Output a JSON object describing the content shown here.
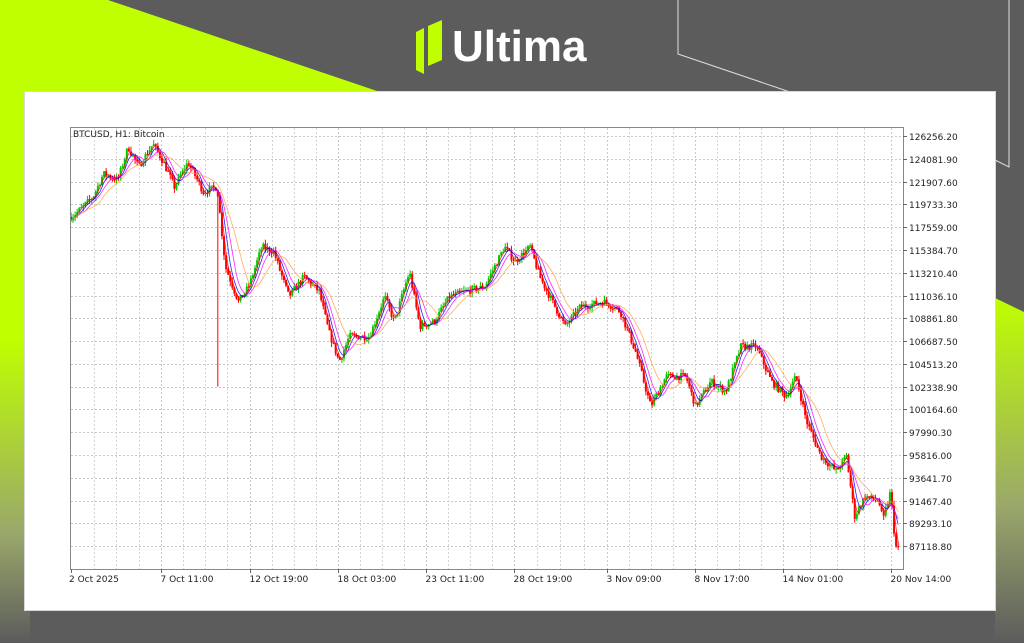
{
  "brand": {
    "name": "Ultima",
    "accent": "#bfff00",
    "background": "#5c5c5c"
  },
  "chart_data": {
    "type": "candlestick",
    "title": "BTCUSD, H1:  Bitcoin",
    "symbol": "BTCUSD",
    "timeframe": "H1",
    "ylim": [
      84940,
      127020
    ],
    "xlim": [
      "2025-10-02T00:00",
      "2025-11-21T07:00"
    ],
    "grid": true,
    "colors": {
      "bull": "#00c800",
      "bear": "#ff0000",
      "ma_fast": "#ff0000",
      "ma_mid": "#0000ff",
      "ma_slow": "#ff00ff",
      "ma_long": "#ffa040"
    },
    "y_ticks": [
      "126256.20",
      "124081.90",
      "121907.60",
      "119733.30",
      "117559.00",
      "115384.70",
      "113210.40",
      "111036.10",
      "108861.80",
      "106687.50",
      "104513.20",
      "102338.90",
      "100164.60",
      "97990.30",
      "95816.00",
      "93641.70",
      "91467.40",
      "89293.10",
      "87118.80"
    ],
    "x_ticks": [
      {
        "label": "2 Oct 2025",
        "t": "2025-10-02T00:00"
      },
      {
        "label": "7 Oct 11:00",
        "t": "2025-10-07T11:00"
      },
      {
        "label": "12 Oct 19:00",
        "t": "2025-10-12T19:00"
      },
      {
        "label": "18 Oct 03:00",
        "t": "2025-10-18T03:00"
      },
      {
        "label": "23 Oct 11:00",
        "t": "2025-10-23T11:00"
      },
      {
        "label": "28 Oct 19:00",
        "t": "2025-10-28T19:00"
      },
      {
        "label": "3 Nov 09:00",
        "t": "2025-11-03T09:00"
      },
      {
        "label": "8 Nov 17:00",
        "t": "2025-11-08T17:00"
      },
      {
        "label": "14 Nov 01:00",
        "t": "2025-11-14T01:00"
      },
      {
        "label": "20 Nov 14:00",
        "t": "2025-11-20T14:00"
      }
    ],
    "price_path": [
      [
        "2025-10-02T00:00",
        118545
      ],
      [
        "2025-10-02T10:00",
        119021
      ],
      [
        "2025-10-03T08:00",
        120449
      ],
      [
        "2025-10-03T23:00",
        122638
      ],
      [
        "2025-10-04T20:00",
        122067
      ],
      [
        "2025-10-05T11:00",
        125209
      ],
      [
        "2025-10-06T02:00",
        123305
      ],
      [
        "2025-10-06T23:00",
        125494
      ],
      [
        "2025-10-07T14:00",
        123781
      ],
      [
        "2025-10-08T06:00",
        121401
      ],
      [
        "2025-10-09T02:00",
        123781
      ],
      [
        "2025-10-10T00:00",
        120925
      ],
      [
        "2025-10-10T20:00",
        121401
      ],
      [
        "2025-10-11T08:00",
        113785
      ],
      [
        "2025-10-12T03:00",
        110453
      ],
      [
        "2025-10-12T18:00",
        111881
      ],
      [
        "2025-10-13T13:00",
        115689
      ],
      [
        "2025-10-14T06:00",
        115213
      ],
      [
        "2025-10-15T04:00",
        110929
      ],
      [
        "2025-10-16T02:00",
        112833
      ],
      [
        "2025-10-17T00:00",
        111405
      ],
      [
        "2025-10-17T14:00",
        107597
      ],
      [
        "2025-10-18T05:00",
        104741
      ],
      [
        "2025-10-18T20:00",
        107121
      ],
      [
        "2025-10-20T01:00",
        107121
      ],
      [
        "2025-10-20T23:00",
        110929
      ],
      [
        "2025-10-21T13:00",
        108549
      ],
      [
        "2025-10-22T11:00",
        113309
      ],
      [
        "2025-10-23T02:00",
        108073
      ],
      [
        "2025-10-23T23:00",
        108549
      ],
      [
        "2025-10-24T21:00",
        110929
      ],
      [
        "2025-10-25T19:00",
        111405
      ],
      [
        "2025-10-27T00:00",
        111881
      ],
      [
        "2025-10-28T05:00",
        115689
      ],
      [
        "2025-10-28T20:00",
        114261
      ],
      [
        "2025-10-29T18:00",
        115689
      ],
      [
        "2025-10-30T08:00",
        112833
      ],
      [
        "2025-10-31T06:00",
        109977
      ],
      [
        "2025-10-31T21:00",
        108073
      ],
      [
        "2025-11-01T19:00",
        109977
      ],
      [
        "2025-11-03T07:00",
        110453
      ],
      [
        "2025-11-04T05:00",
        109501
      ],
      [
        "2025-11-05T03:00",
        105693
      ],
      [
        "2025-11-06T01:00",
        100457
      ],
      [
        "2025-11-06T23:00",
        103313
      ],
      [
        "2025-11-08T04:00",
        103313
      ],
      [
        "2025-11-08T18:00",
        100457
      ],
      [
        "2025-11-09T16:00",
        102837
      ],
      [
        "2025-11-10T14:00",
        101885
      ],
      [
        "2025-11-11T12:00",
        106169
      ],
      [
        "2025-11-12T10:00",
        106169
      ],
      [
        "2025-11-13T08:00",
        102837
      ],
      [
        "2025-11-14T05:00",
        101409
      ],
      [
        "2025-11-14T20:00",
        103313
      ],
      [
        "2025-11-15T11:00",
        99029
      ],
      [
        "2025-11-16T08:00",
        95697
      ],
      [
        "2025-11-17T06:00",
        94269
      ],
      [
        "2025-11-17T21:00",
        95697
      ],
      [
        "2025-11-18T09:00",
        89985
      ],
      [
        "2025-11-19T00:00",
        91889
      ],
      [
        "2025-11-19T20:00",
        91413
      ],
      [
        "2025-11-20T02:00",
        89509
      ],
      [
        "2025-11-20T13:00",
        92365
      ],
      [
        "2025-11-20T20:00",
        87129
      ],
      [
        "2025-11-21T02:00",
        86653
      ]
    ],
    "spike_low": {
      "t": "2025-10-10T21:00",
      "low": 102360
    }
  }
}
